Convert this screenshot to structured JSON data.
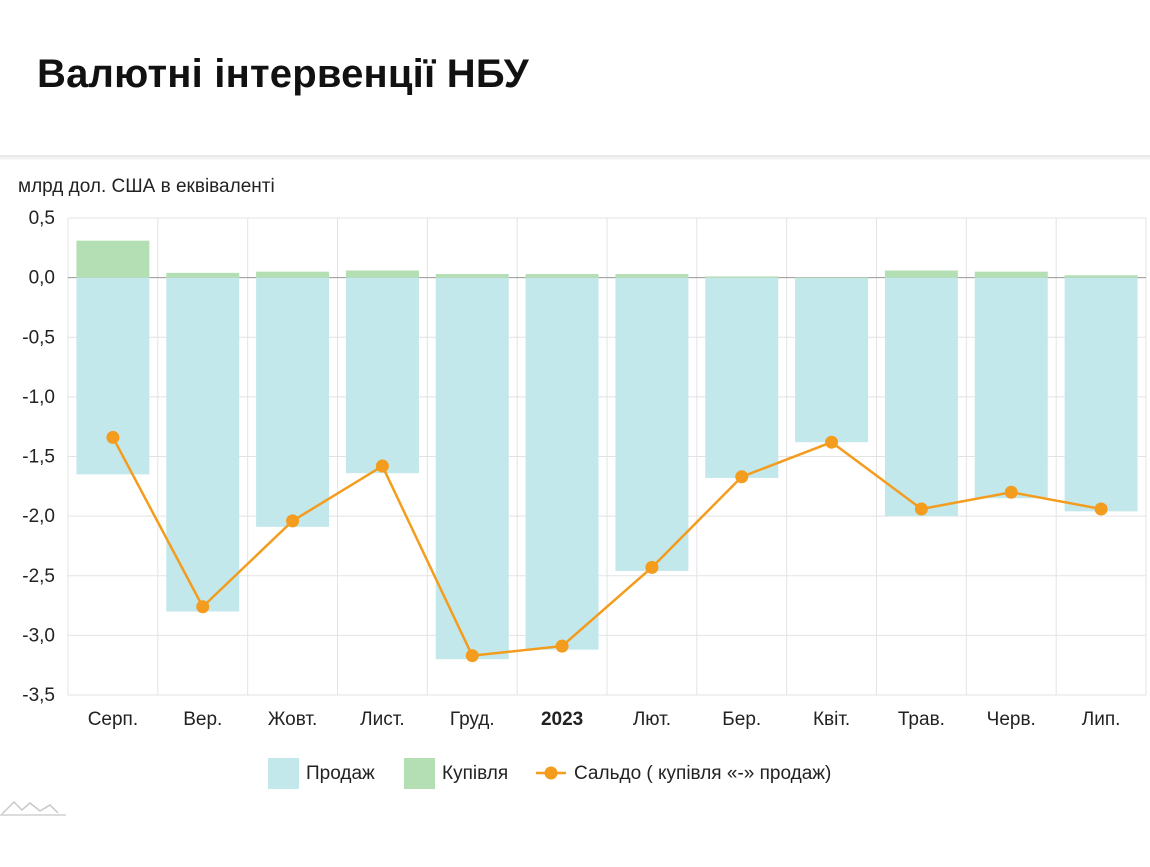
{
  "page": {
    "title": "Валютні інтервенції НБУ"
  },
  "chart_data": {
    "type": "bar",
    "unit_label": "млрд дол. США в еквіваленті",
    "ylim": [
      -3.5,
      0.5
    ],
    "yticks": [
      0.5,
      0.0,
      -0.5,
      -1.0,
      -1.5,
      -2.0,
      -2.5,
      -3.0,
      -3.5
    ],
    "ytick_labels": [
      "0,5",
      "0,0",
      "-0,5",
      "-1,0",
      "-1,5",
      "-2,0",
      "-2,5",
      "-3,0",
      "-3,5"
    ],
    "grid": true,
    "categories": [
      "Серп.",
      "Вер.",
      "Жовт.",
      "Лист.",
      "Груд.",
      "2023",
      "Лют.",
      "Бер.",
      "Квіт.",
      "Трав.",
      "Черв.",
      "Лип."
    ],
    "bold_categories": [
      "2023"
    ],
    "series": [
      {
        "name": "Продаж",
        "kind": "bar",
        "color": "#c3e8ec",
        "values": [
          -1.65,
          -2.8,
          -2.09,
          -1.64,
          -3.2,
          -3.12,
          -2.46,
          -1.68,
          -1.38,
          -2.0,
          -1.85,
          -1.96
        ]
      },
      {
        "name": "Купівля",
        "kind": "bar",
        "color": "#b4dfb4",
        "values": [
          0.31,
          0.04,
          0.05,
          0.06,
          0.03,
          0.03,
          0.03,
          0.01,
          0.0,
          0.06,
          0.05,
          0.02
        ]
      },
      {
        "name": "Сальдо ( купівля «-» продаж)",
        "kind": "line",
        "color": "#f39c1e",
        "values": [
          -1.34,
          -2.76,
          -2.04,
          -1.58,
          -3.17,
          -3.09,
          -2.43,
          -1.67,
          -1.38,
          -1.94,
          -1.8,
          -1.94
        ]
      }
    ],
    "legend_position": "bottom-center"
  }
}
